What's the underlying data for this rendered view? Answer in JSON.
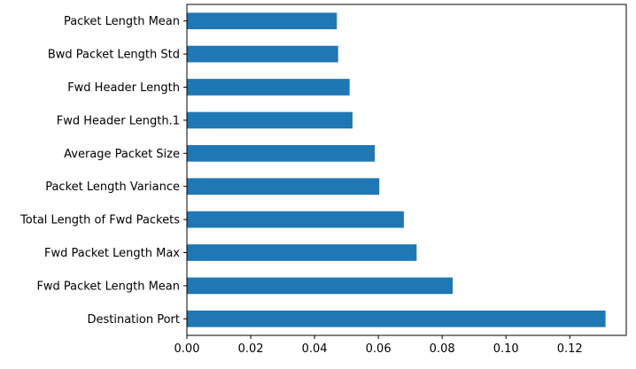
{
  "chart_data": {
    "type": "bar",
    "orientation": "horizontal",
    "categories": [
      "Destination Port",
      "Fwd Packet Length Mean",
      "Fwd Packet Length Max",
      "Total Length of Fwd Packets",
      "Packet Length Variance",
      "Average Packet Size",
      "Fwd Header Length.1",
      "Fwd Header Length",
      "Bwd Packet Length Std",
      "Packet Length Mean"
    ],
    "values": [
      0.1312,
      0.0833,
      0.072,
      0.068,
      0.0603,
      0.0589,
      0.0519,
      0.051,
      0.0474,
      0.047
    ],
    "xlim": [
      0,
      0.1377
    ],
    "xticks": [
      0.0,
      0.02,
      0.04,
      0.06,
      0.08,
      0.1,
      0.12
    ],
    "xtick_labels": [
      "0.00",
      "0.02",
      "0.04",
      "0.06",
      "0.08",
      "0.10",
      "0.12"
    ],
    "title": "",
    "xlabel": "",
    "ylabel": "",
    "grid": false,
    "bar_color": "#1f77b4"
  }
}
